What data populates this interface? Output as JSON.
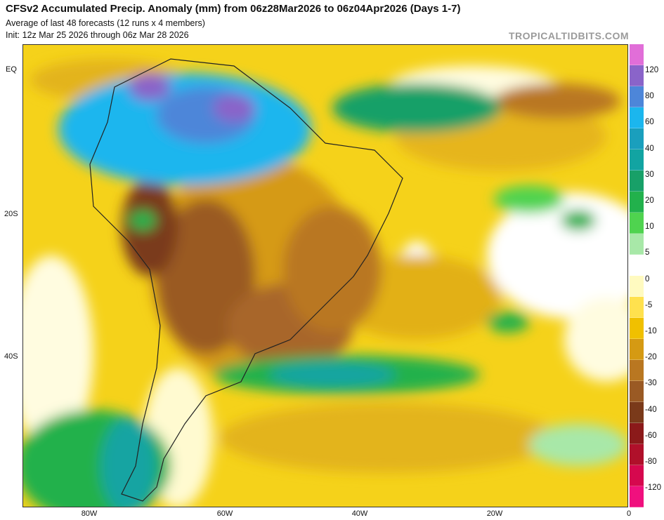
{
  "header": {
    "title": "CFSv2 Accumulated Precip. Anomaly (mm) from 06z28Mar2026 to 06z04Apr2026 (Days 1-7)",
    "subtitle1": "Average of last 48 forecasts (12 runs x 4 members)",
    "subtitle2": "Init: 12z Mar 25 2026 through 06z Mar 28 2026",
    "brand": "TROPICALTIDBITS.COM"
  },
  "axes": {
    "y_labels": [
      "EQ",
      "20S",
      "40S"
    ],
    "x_labels": [
      "80W",
      "60W",
      "40W",
      "20W",
      "0"
    ]
  },
  "colorbar": {
    "labels": [
      "120",
      "80",
      "60",
      "40",
      "30",
      "20",
      "10",
      "5",
      "0",
      "-5",
      "-10",
      "-20",
      "-30",
      "-40",
      "-60",
      "-80",
      "-120"
    ],
    "colors": [
      "#e16ed8",
      "#8a64c9",
      "#4d86d9",
      "#1bb6ee",
      "#1a9fbd",
      "#12a4a2",
      "#18a068",
      "#22b14c",
      "#4fd34f",
      "#a8e8a8",
      "#ffffff",
      "#fffac0",
      "#ffe14e",
      "#f0c000",
      "#d59a13",
      "#b97721",
      "#9a5a24",
      "#7a3a1a",
      "#8b1a1a",
      "#b0102a",
      "#d6084e",
      "#f0107e"
    ]
  },
  "map": {
    "description_colors": {
      "wet_strong": "#8a64c9",
      "wet": "#1bb6ee",
      "wet_mod": "#22b14c",
      "neutral": "#ffffff",
      "dry_light": "#ffe14e",
      "dry": "#d59a13",
      "dry_strong": "#9a5a24",
      "dry_extreme": "#7a3a1a"
    }
  }
}
